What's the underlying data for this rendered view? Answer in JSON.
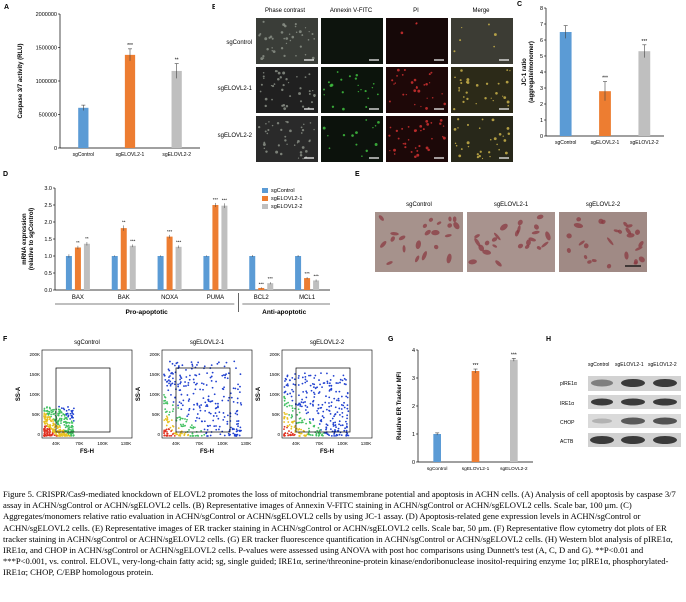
{
  "panel_letters": {
    "a": "A",
    "b": "B",
    "c": "C",
    "d": "D",
    "e": "E",
    "f": "F",
    "g": "G",
    "h": "H"
  },
  "microscopy_b": {
    "columns": [
      "Phase contrast",
      "Annexin V-FITC",
      "PI",
      "Merge"
    ],
    "rows": [
      "sgControl",
      "sgELOVL2-1",
      "sgELOVL2-2"
    ]
  },
  "microscopy_e": {
    "labels": [
      "sgControl",
      "sgELOVL2-1",
      "sgELOVL2-2"
    ]
  },
  "flow_f": {
    "titles": [
      "sgControl",
      "sgELOVL2-1",
      "sgELOVL2-2"
    ],
    "xlabel": "FS-H",
    "ylabel": "SS-A",
    "xticks": [
      "40K",
      "70K",
      "100K",
      "130K"
    ],
    "yticks": [
      "200K",
      "150K",
      "100K",
      "50K",
      "0"
    ]
  },
  "western_h": {
    "columns": [
      "sgControl",
      "sgELOVL2-1",
      "sgELOVL2-2"
    ],
    "rows": [
      "pIRE1α",
      "IRE1α",
      "CHOP",
      "ACTB"
    ]
  },
  "caption": {
    "text": "Figure 5. CRISPR/Cas9-mediated knockdown of ELOVL2 promotes the loss of mitochondrial transmembrane potential and apoptosis in ACHN cells. (A) Analysis of cell apoptosis by caspase 3/7 assay in ACHN/sgControl or ACHN/sgELOVL2 cells. (B) Representative images of Annexin V-FITC staining in ACHN/sgControl or ACHN/sgELOVL2 cells. Scale bar, 100 μm. (C) Aggregates/monomers relative ratio evaluation in ACHN/sgControl or ACHN/sgELOVL2 cells by using JC-1 assay. (D) Apoptosis-related gene expression levels in ACHN/sgControl or ACHN/sgELOVL2 cells. (E) Representative images of ER tracker staining in ACHN/sgControl or ACHN/sgELOVL2 cells. Scale bar, 50 μm. (F) Representative flow cytometry dot plots of ER tracker staining in ACHN/sgControl or ACHN/sgELOVL2 cells. (G) ER tracker fluorescence quantification in ACHN/sgControl or ACHN/sgELOVL2 cells. (H) Western blot analysis of pIRE1α, IRE1α, and CHOP in ACHN/sgControl or ACHN/sgELOVL2 cells. P-values were assessed using ANOVA with post hoc comparisons using Dunnett's test (A, C, D and G). **P<0.01 and ***P<0.001, vs. control. ELOVL, very-long-chain fatty acid; sg, single guided; IRE1α, serine/threonine-protein kinase/endoribonuclease inositol-requiring enzyme 1α; pIRE1α, phosphorylated-IRE1α; CHOP, C/EBP homologous protein."
  },
  "colors": {
    "control": "#5b9bd5",
    "elovl1": "#ed7d31",
    "elovl2": "#bfbfbf"
  },
  "chart_data": [
    {
      "id": "A",
      "type": "bar",
      "categories": [
        "sgControl",
        "sgELOVL2-1",
        "sgELOVL2-2"
      ],
      "values": [
        600000,
        1390000,
        1150000
      ],
      "errors": [
        40000,
        90000,
        110000
      ],
      "sig": [
        "",
        "***",
        "**"
      ],
      "ylabel": "Caspase 3/7 activity (RLU)",
      "ylim": [
        0,
        2000000
      ],
      "yticks": [
        "0",
        "500000",
        "1000000",
        "1500000",
        "2000000"
      ]
    },
    {
      "id": "C",
      "type": "bar",
      "categories": [
        "sgControl",
        "sgELOVL2-1",
        "sgELOVL2-2"
      ],
      "values": [
        6.5,
        2.8,
        5.3
      ],
      "errors": [
        0.4,
        0.6,
        0.4
      ],
      "sig": [
        "",
        "***",
        "***"
      ],
      "ylabel": "JC-1 ratio (aggregate/monomer)",
      "ylim": [
        0,
        8
      ],
      "yticks": [
        "0",
        "1",
        "2",
        "3",
        "4",
        "5",
        "6",
        "7",
        "8"
      ]
    },
    {
      "id": "D",
      "type": "bar",
      "categories": [
        "BAX",
        "BAK",
        "NOXA",
        "PUMA",
        "BCL2",
        "MCL1"
      ],
      "series": [
        {
          "name": "sgControl",
          "values": [
            1.0,
            1.0,
            1.0,
            1.0,
            1.0,
            1.0
          ],
          "errors": [
            0.05,
            0.02,
            0.02,
            0.02,
            0.03,
            0.03
          ]
        },
        {
          "name": "sgELOVL2-1",
          "values": [
            1.25,
            1.82,
            1.57,
            2.5,
            0.06,
            0.35
          ],
          "errors": [
            0.05,
            0.08,
            0.05,
            0.06,
            0.02,
            0.03
          ]
        },
        {
          "name": "sgELOVL2-2",
          "values": [
            1.36,
            1.3,
            1.27,
            2.48,
            0.2,
            0.28
          ],
          "errors": [
            0.05,
            0.04,
            0.04,
            0.07,
            0.03,
            0.03
          ]
        }
      ],
      "sig": [
        [
          "",
          "**",
          "**"
        ],
        [
          "",
          "**",
          "***"
        ],
        [
          "",
          "***",
          "***"
        ],
        [
          "",
          "***",
          "***"
        ],
        [
          "",
          "***",
          "***"
        ],
        [
          "",
          "***",
          "***"
        ]
      ],
      "ylabel": "mRNA expression (relative to sgControl)",
      "ylim": [
        0,
        3.0
      ],
      "yticks": [
        "0.0",
        "0.5",
        "1.0",
        "1.5",
        "2.0",
        "2.5",
        "3.0"
      ],
      "groups": [
        {
          "label": "Pro-apoptotic"
        },
        {
          "label": "Anti-apoptotic"
        }
      ]
    },
    {
      "id": "G",
      "type": "bar",
      "categories": [
        "sgControl",
        "sgELOVL2-1",
        "sgELOVL2-2"
      ],
      "values": [
        1.0,
        3.25,
        3.65
      ],
      "errors": [
        0.04,
        0.07,
        0.05
      ],
      "sig": [
        "",
        "***",
        "***"
      ],
      "ylabel": "Relative ER Tracker MFI",
      "ylim": [
        0,
        4
      ],
      "yticks": [
        "0",
        "1",
        "2",
        "3",
        "4"
      ]
    }
  ]
}
